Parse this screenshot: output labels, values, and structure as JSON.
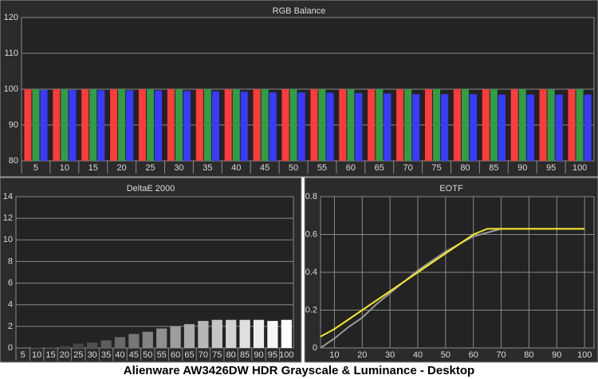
{
  "title": "Alienware AW3426DW HDR Grayscale & Luminance - Desktop",
  "chart_data": [
    {
      "type": "bar",
      "title": "RGB Balance",
      "categories": [
        "5",
        "10",
        "15",
        "20",
        "25",
        "30",
        "35",
        "40",
        "45",
        "50",
        "55",
        "60",
        "65",
        "70",
        "75",
        "80",
        "85",
        "90",
        "95",
        "100"
      ],
      "series": [
        {
          "color": "#ff3b3b",
          "values": [
            100,
            100,
            100,
            100,
            100,
            100,
            100,
            100,
            100,
            100,
            100,
            100,
            100,
            100,
            100,
            100,
            100,
            100,
            100,
            100
          ]
        },
        {
          "color": "#2f9e44",
          "values": [
            100,
            100,
            100,
            100,
            100,
            100,
            100,
            100,
            100,
            100,
            100,
            100,
            100,
            100,
            100,
            100,
            100,
            100,
            100,
            100
          ]
        },
        {
          "color": "#3a3aff",
          "values": [
            99.8,
            99.8,
            99.7,
            99.7,
            99.6,
            99.5,
            99.4,
            99.3,
            99.1,
            99.1,
            99.0,
            98.9,
            98.8,
            98.6,
            98.6,
            98.6,
            98.5,
            98.5,
            98.5,
            98.5
          ]
        }
      ],
      "ylim": [
        80,
        120
      ],
      "yticks": [
        80,
        90,
        100,
        110,
        120
      ],
      "grid": true
    },
    {
      "type": "bar",
      "title": "DeltaE 2000",
      "categories": [
        "5",
        "10",
        "15",
        "20",
        "25",
        "30",
        "35",
        "40",
        "45",
        "50",
        "55",
        "60",
        "65",
        "70",
        "75",
        "80",
        "85",
        "90",
        "95",
        "100"
      ],
      "values": [
        0,
        0.1,
        0.1,
        0.2,
        0.4,
        0.5,
        0.7,
        1.0,
        1.3,
        1.5,
        1.8,
        2.0,
        2.2,
        2.5,
        2.6,
        2.6,
        2.6,
        2.6,
        2.5,
        2.6
      ],
      "colors": [
        "#1c1c1c",
        "#262626",
        "#303030",
        "#3b3b3b",
        "#464646",
        "#515151",
        "#5d5d5d",
        "#696969",
        "#767676",
        "#838383",
        "#909090",
        "#9d9d9d",
        "#ababab",
        "#b8b8b8",
        "#c5c5c5",
        "#d2d2d2",
        "#dfdfdf",
        "#ececec",
        "#f6f6f6",
        "#ffffff"
      ],
      "ylim": [
        0,
        14
      ],
      "yticks": [
        0,
        2,
        4,
        6,
        8,
        10,
        12,
        14
      ],
      "grid": true
    },
    {
      "type": "line",
      "title": "EOTF",
      "x": [
        5,
        10,
        15,
        20,
        25,
        30,
        35,
        40,
        45,
        50,
        55,
        60,
        65,
        70,
        75,
        80,
        85,
        90,
        95,
        100
      ],
      "series": [
        {
          "color": "#999999",
          "values": [
            0.0,
            0.05,
            0.11,
            0.16,
            0.23,
            0.29,
            0.35,
            0.41,
            0.46,
            0.51,
            0.55,
            0.59,
            0.61,
            0.63,
            0.63,
            0.63,
            0.63,
            0.63,
            0.63,
            0.63
          ]
        },
        {
          "color": "#f5e72a",
          "values": [
            0.06,
            0.1,
            0.15,
            0.2,
            0.25,
            0.3,
            0.35,
            0.4,
            0.45,
            0.5,
            0.55,
            0.6,
            0.63,
            0.63,
            0.63,
            0.63,
            0.63,
            0.63,
            0.63,
            0.63
          ]
        }
      ],
      "xlim": [
        5,
        103.4
      ],
      "xticks": [
        10,
        20,
        30,
        40,
        50,
        60,
        70,
        80,
        90,
        100
      ],
      "ylim": [
        0,
        0.8
      ],
      "yticks": [
        0,
        0.2,
        0.4,
        0.6,
        0.8
      ],
      "grid": true
    }
  ]
}
